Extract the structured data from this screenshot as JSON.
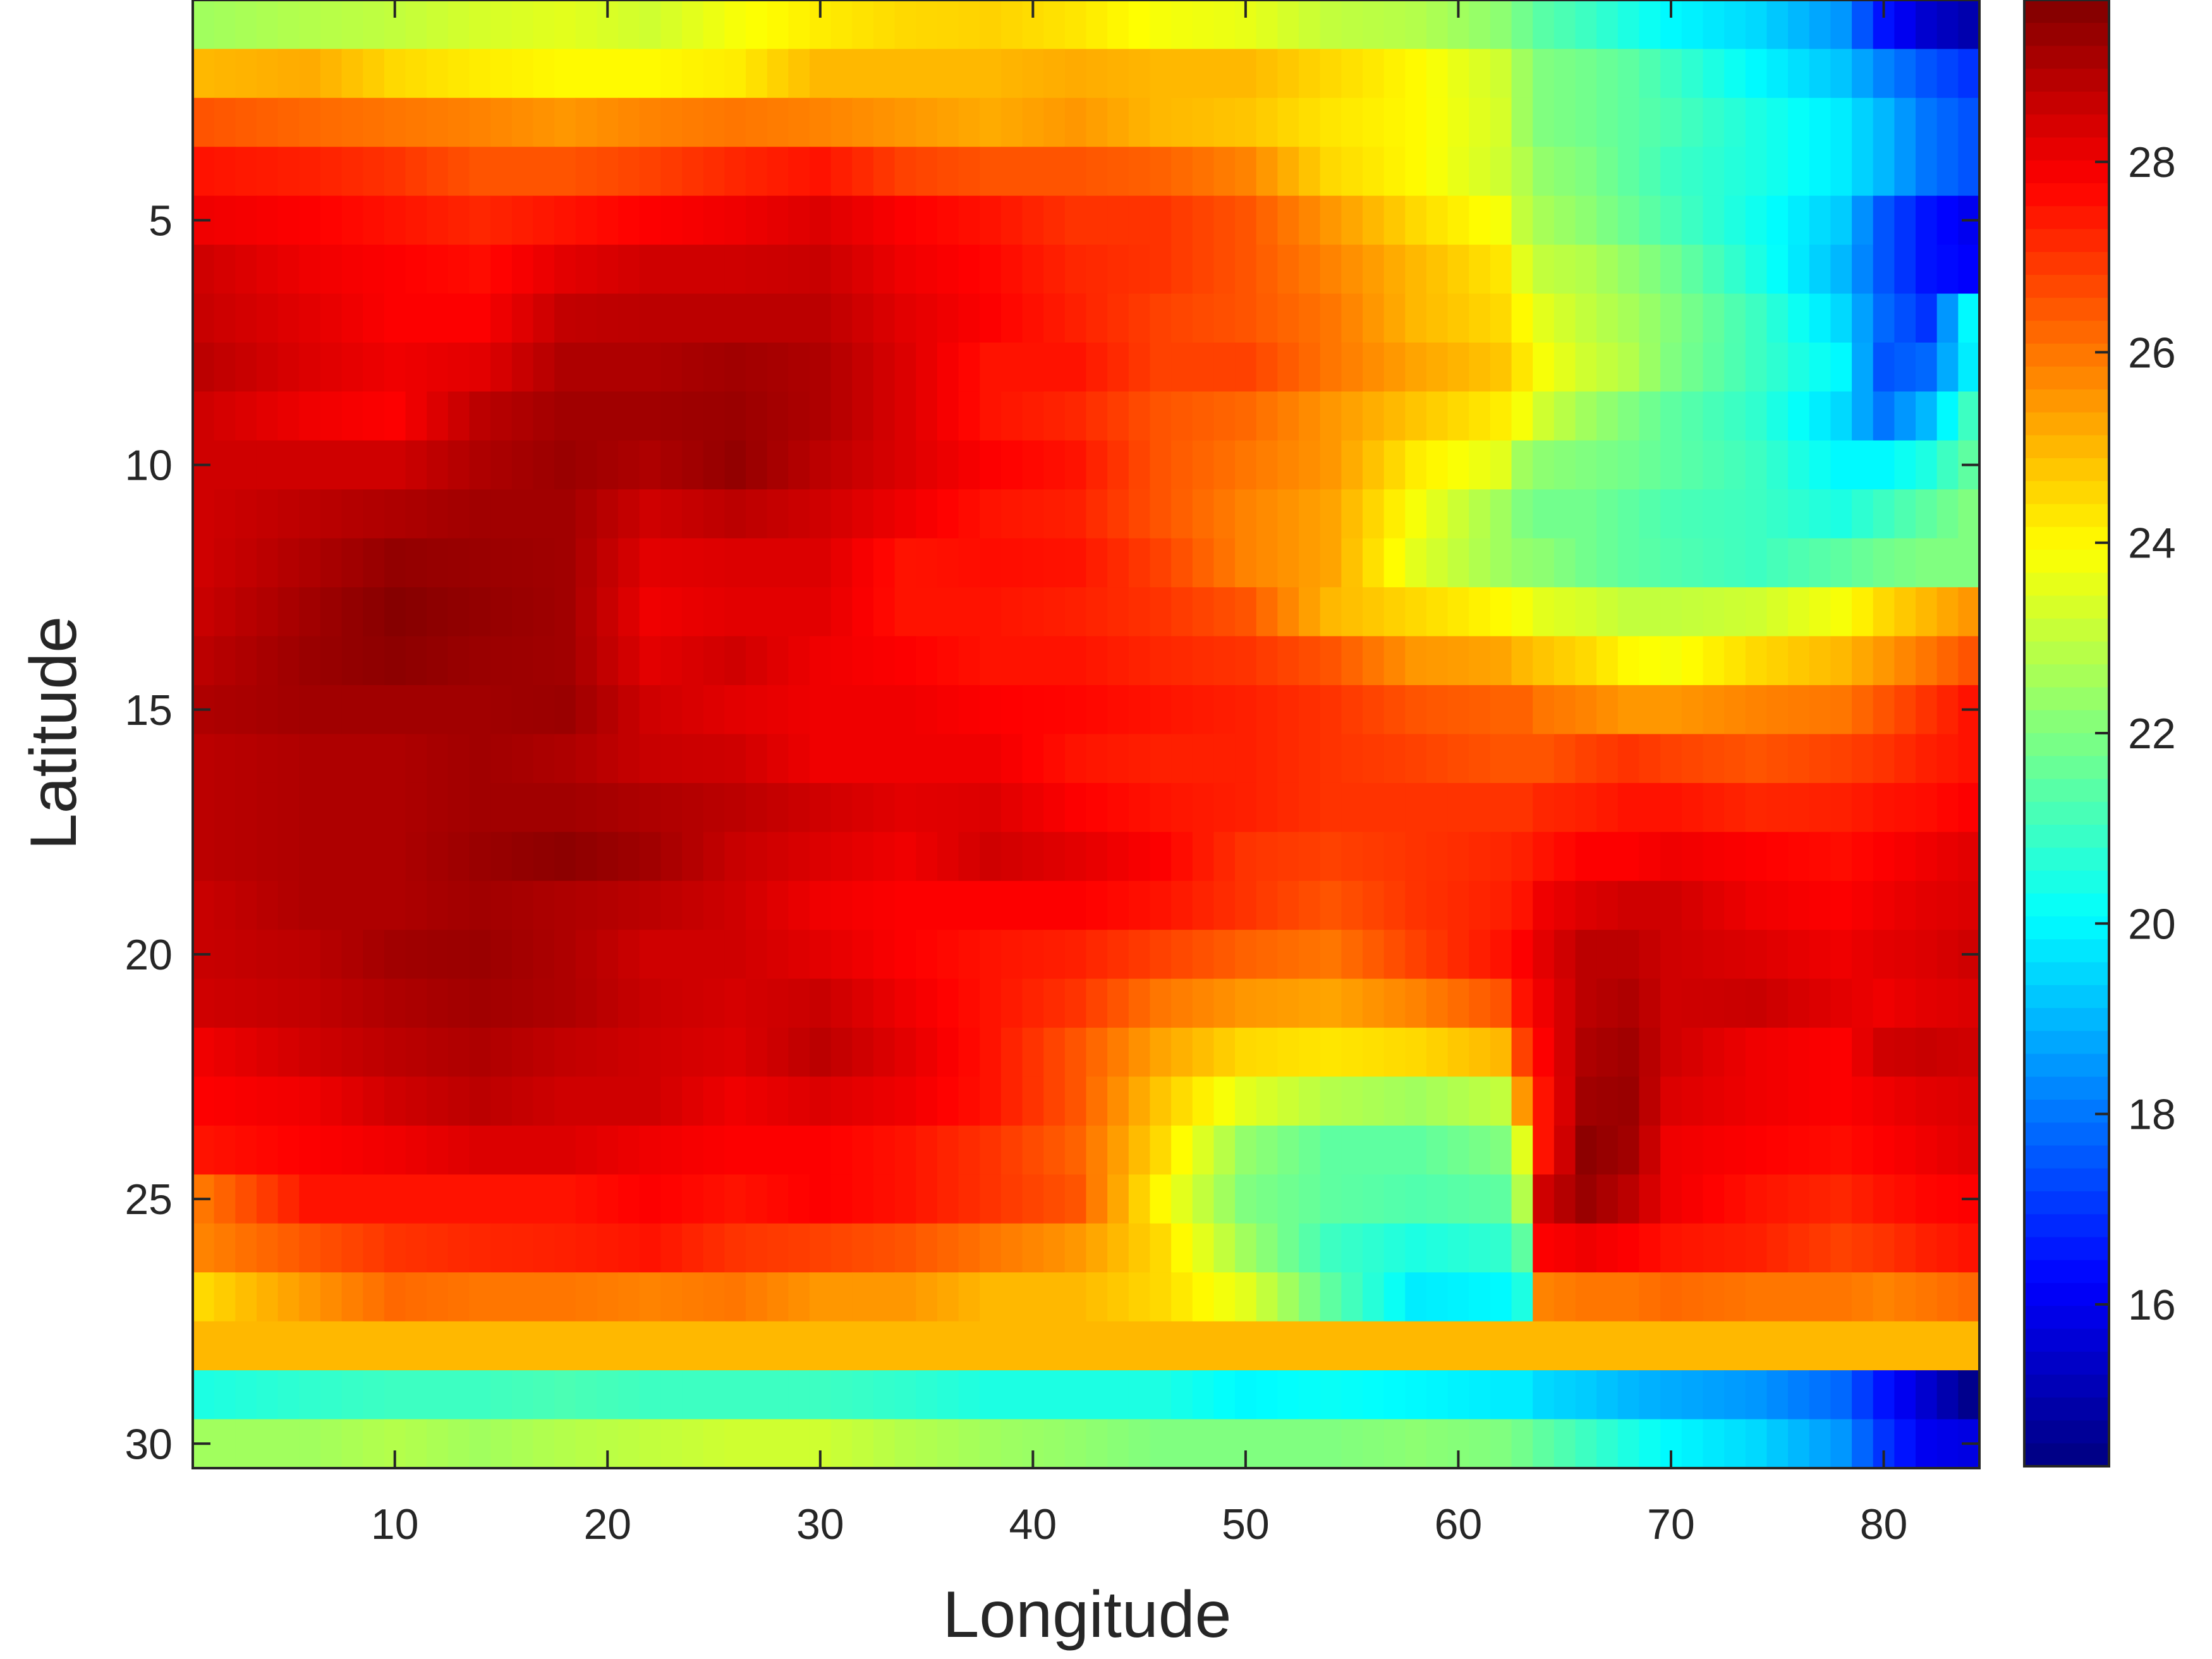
{
  "chart_data": {
    "type": "heatmap",
    "title": "",
    "xlabel": "Longitude",
    "ylabel": "Latitude",
    "colorbar_label": "",
    "colormap": "jet",
    "x_range": [
      1,
      84
    ],
    "y_range": [
      1,
      30
    ],
    "y_direction": "down",
    "x_ticks": [
      10,
      20,
      30,
      40,
      50,
      60,
      70,
      80
    ],
    "y_ticks": [
      5,
      10,
      15,
      20,
      25,
      30
    ],
    "colorbar_ticks": [
      16,
      18,
      20,
      22,
      24,
      26,
      28
    ],
    "color_range": [
      14.3,
      29.7
    ],
    "grid": false,
    "x_knots": [
      1,
      6,
      10,
      14,
      18,
      22,
      26,
      30,
      34,
      38,
      42,
      46,
      50,
      54,
      58,
      62,
      63,
      64,
      66,
      68,
      70,
      74,
      78,
      80,
      82,
      84
    ],
    "z_rows": [
      {
        "y": 1,
        "values": [
          22.5,
          22.8,
          23,
          23.3,
          23.5,
          23.2,
          23.8,
          24.2,
          24.5,
          24.6,
          24.3,
          23.8,
          23.6,
          23.0,
          22.8,
          22.2,
          21.8,
          21.4,
          21.0,
          20.5,
          20.0,
          19.5,
          18.5,
          16.5,
          15.5,
          15.0
        ]
      },
      {
        "y": 2,
        "values": [
          25.0,
          25.2,
          24.5,
          24.2,
          24.0,
          24.0,
          24.2,
          25.0,
          25.0,
          25.0,
          25.2,
          25.0,
          25.0,
          24.5,
          24.0,
          23.2,
          22.5,
          22.0,
          21.8,
          21.5,
          21.0,
          20.0,
          19.2,
          18.2,
          17.5,
          17.0
        ]
      },
      {
        "y": 3,
        "values": [
          26.5,
          26.2,
          26.0,
          25.8,
          25.5,
          25.8,
          26.0,
          25.8,
          25.5,
          25.2,
          25.5,
          25.0,
          24.8,
          24.3,
          24.0,
          23.3,
          22.5,
          22.0,
          21.8,
          21.5,
          21.2,
          20.5,
          19.8,
          19.0,
          18.0,
          17.5
        ]
      },
      {
        "y": 4,
        "values": [
          27.5,
          27.3,
          27.0,
          26.5,
          26.5,
          26.8,
          27.2,
          27.5,
          26.8,
          26.5,
          26.5,
          26.3,
          25.8,
          24.5,
          24.0,
          23.2,
          22.8,
          22.3,
          22.0,
          21.5,
          21.0,
          20.5,
          19.8,
          19.0,
          18.0,
          17.5
        ]
      },
      {
        "y": 5,
        "values": [
          28.0,
          27.8,
          27.5,
          27.2,
          27.5,
          27.8,
          28.0,
          28.3,
          27.8,
          27.5,
          27.0,
          27.0,
          26.5,
          25.5,
          24.5,
          23.8,
          23.0,
          22.6,
          22.2,
          21.7,
          21.2,
          20.3,
          19.3,
          17.5,
          16.5,
          16.0
        ]
      },
      {
        "y": 6,
        "values": [
          28.5,
          28.0,
          27.8,
          27.6,
          28.2,
          28.5,
          28.5,
          28.6,
          28.0,
          27.7,
          27.2,
          27.0,
          26.5,
          25.8,
          25.0,
          24.3,
          23.5,
          23.0,
          22.8,
          22.3,
          21.8,
          20.5,
          19.0,
          17.5,
          16.5,
          16.2
        ]
      },
      {
        "y": 7,
        "values": [
          28.6,
          28.2,
          27.8,
          27.8,
          28.7,
          28.8,
          28.8,
          28.8,
          28.2,
          27.8,
          27.3,
          26.8,
          26.5,
          26.0,
          25.0,
          24.5,
          24.0,
          23.5,
          23.0,
          22.6,
          22.1,
          21.0,
          19.5,
          17.8,
          17.0,
          20.0
        ]
      },
      {
        "y": 8,
        "values": [
          28.8,
          28.3,
          28.0,
          28.2,
          29.0,
          29.0,
          29.2,
          29.0,
          28.3,
          27.5,
          27.5,
          26.8,
          26.8,
          26.0,
          25.3,
          24.8,
          24.3,
          23.8,
          23.2,
          22.8,
          22.0,
          21.0,
          20.0,
          17.5,
          17.8,
          19.8
        ]
      },
      {
        "y": 9,
        "values": [
          28.5,
          28.0,
          27.8,
          28.8,
          29.2,
          29.2,
          29.3,
          29.0,
          28.3,
          27.5,
          27.2,
          26.5,
          26.2,
          25.5,
          24.8,
          24.2,
          23.8,
          23.2,
          22.5,
          22.0,
          21.5,
          20.8,
          19.5,
          18.0,
          19.0,
          21.0
        ]
      },
      {
        "y": 10,
        "values": [
          28.5,
          28.5,
          28.5,
          29.0,
          29.3,
          29.0,
          29.4,
          28.8,
          28.3,
          27.8,
          27.5,
          26.5,
          26.0,
          25.5,
          24.2,
          23.5,
          22.5,
          22.2,
          22.0,
          21.8,
          21.5,
          21.0,
          20.0,
          20.0,
          20.5,
          21.5
        ]
      },
      {
        "y": 11,
        "values": [
          28.5,
          28.8,
          29.0,
          29.2,
          29.2,
          28.5,
          28.8,
          28.5,
          28.0,
          27.5,
          27.3,
          26.5,
          25.8,
          25.3,
          23.8,
          22.5,
          22.0,
          21.8,
          21.8,
          21.5,
          21.2,
          21.0,
          20.5,
          21.0,
          21.5,
          22.0
        ]
      },
      {
        "y": 12,
        "values": [
          28.5,
          29.0,
          29.4,
          29.3,
          29.2,
          28.2,
          28.3,
          28.3,
          27.5,
          27.6,
          27.5,
          26.8,
          25.8,
          25.3,
          23.5,
          22.5,
          22.3,
          22.2,
          21.8,
          21.5,
          21.3,
          21.0,
          21.5,
          21.8,
          22.0,
          22.0
        ]
      },
      {
        "y": 13,
        "values": [
          28.6,
          29.2,
          29.6,
          29.4,
          29.2,
          28.0,
          28.2,
          28.2,
          27.5,
          27.5,
          27.3,
          27.0,
          26.5,
          25.0,
          24.5,
          24.0,
          23.8,
          23.5,
          23.3,
          23.0,
          23.0,
          23.2,
          23.8,
          24.5,
          25.0,
          25.5
        ]
      },
      {
        "y": 14,
        "values": [
          28.8,
          29.3,
          29.5,
          29.3,
          29.2,
          28.2,
          28.5,
          28.0,
          27.8,
          27.5,
          27.5,
          27.2,
          27.0,
          26.5,
          25.5,
          25.3,
          25.0,
          24.8,
          24.5,
          24.0,
          23.8,
          24.5,
          25.0,
          25.5,
          26.0,
          26.5
        ]
      },
      {
        "y": 15,
        "values": [
          29.0,
          29.2,
          29.2,
          29.2,
          29.3,
          28.5,
          28.2,
          28.0,
          28.0,
          27.8,
          27.7,
          27.5,
          27.3,
          27.0,
          26.5,
          26.3,
          26.3,
          26.0,
          25.8,
          25.5,
          25.5,
          25.8,
          26.0,
          26.5,
          27.0,
          27.5
        ]
      },
      {
        "y": 16,
        "values": [
          28.8,
          29.0,
          29.0,
          29.2,
          29.0,
          28.6,
          28.5,
          28.0,
          28.0,
          28.0,
          27.5,
          27.3,
          27.3,
          27.0,
          26.8,
          26.5,
          26.5,
          26.5,
          26.8,
          27.0,
          26.8,
          26.5,
          26.8,
          27.0,
          27.3,
          27.5
        ]
      },
      {
        "y": 17,
        "values": [
          28.8,
          29.0,
          29.0,
          29.2,
          29.2,
          29.0,
          28.8,
          28.5,
          28.2,
          28.3,
          27.8,
          27.5,
          27.3,
          27.0,
          27.0,
          27.0,
          27.0,
          27.2,
          27.3,
          27.5,
          27.5,
          27.2,
          27.3,
          27.5,
          27.6,
          27.8
        ]
      },
      {
        "y": 18,
        "values": [
          28.8,
          29.0,
          29.0,
          29.3,
          29.5,
          29.2,
          28.6,
          28.3,
          28.0,
          28.5,
          28.2,
          27.8,
          27.0,
          26.8,
          27.0,
          27.2,
          27.3,
          27.5,
          27.8,
          27.8,
          28.0,
          27.8,
          27.6,
          27.8,
          28.0,
          28.2
        ]
      },
      {
        "y": 19,
        "values": [
          28.6,
          29.0,
          29.0,
          29.2,
          29.0,
          28.8,
          28.5,
          28.0,
          27.8,
          27.8,
          27.8,
          27.5,
          27.0,
          26.5,
          27.0,
          27.3,
          27.5,
          28.0,
          28.3,
          28.5,
          28.5,
          28.0,
          27.8,
          28.0,
          28.2,
          28.3
        ]
      },
      {
        "y": 20,
        "values": [
          28.6,
          28.8,
          29.2,
          29.3,
          29.0,
          28.5,
          28.5,
          28.2,
          27.8,
          27.5,
          27.3,
          26.8,
          26.3,
          26.0,
          26.8,
          27.5,
          27.8,
          28.2,
          28.8,
          28.8,
          28.5,
          28.3,
          28.0,
          28.2,
          28.3,
          28.5
        ]
      },
      {
        "y": 21,
        "values": [
          28.5,
          28.7,
          29.0,
          29.2,
          29.0,
          28.6,
          28.4,
          28.6,
          28.0,
          27.5,
          27.0,
          26.0,
          25.5,
          25.3,
          25.8,
          26.5,
          27.5,
          28.0,
          28.8,
          29.0,
          28.5,
          28.6,
          28.2,
          28.0,
          28.2,
          28.3
        ]
      },
      {
        "y": 22,
        "values": [
          28.0,
          28.5,
          28.8,
          29.0,
          28.7,
          28.5,
          28.3,
          28.8,
          28.2,
          27.5,
          26.5,
          25.3,
          24.5,
          24.3,
          24.5,
          25.0,
          26.8,
          27.8,
          29.0,
          29.2,
          28.5,
          28.0,
          27.8,
          28.5,
          28.6,
          28.5
        ]
      },
      {
        "y": 23,
        "values": [
          27.8,
          28.0,
          28.5,
          28.8,
          28.5,
          28.5,
          28.0,
          28.3,
          28.0,
          27.5,
          26.5,
          24.8,
          23.5,
          22.8,
          22.5,
          23.0,
          25.5,
          27.5,
          29.2,
          29.3,
          28.3,
          28.0,
          27.8,
          28.0,
          28.2,
          28.3
        ]
      },
      {
        "y": 24,
        "values": [
          27.5,
          27.8,
          28.0,
          28.3,
          28.3,
          28.0,
          27.8,
          27.8,
          27.5,
          27.0,
          26.3,
          24.5,
          22.3,
          21.5,
          21.5,
          22.0,
          23.5,
          27.5,
          29.5,
          29.2,
          28.0,
          27.8,
          27.6,
          27.8,
          28.0,
          28.2
        ]
      },
      {
        "y": 25,
        "values": [
          26.0,
          27.5,
          27.5,
          27.5,
          27.5,
          27.8,
          27.5,
          27.8,
          27.5,
          27.0,
          26.5,
          24.0,
          22.0,
          21.5,
          21.3,
          21.5,
          22.8,
          28.5,
          29.3,
          28.8,
          28.0,
          27.5,
          27.2,
          27.5,
          27.7,
          27.8
        ]
      },
      {
        "y": 26,
        "values": [
          25.8,
          26.5,
          27.0,
          27.2,
          27.3,
          27.5,
          27.0,
          26.8,
          26.5,
          26.0,
          25.5,
          24.5,
          22.5,
          21.0,
          20.5,
          20.8,
          21.5,
          27.8,
          28.0,
          27.8,
          27.5,
          27.3,
          26.8,
          27.0,
          27.3,
          27.5
        ]
      },
      {
        "y": 27,
        "values": [
          24.5,
          25.5,
          26.2,
          26.0,
          26.0,
          25.8,
          26.0,
          25.5,
          25.5,
          25.0,
          25.0,
          24.5,
          23.5,
          21.5,
          19.8,
          20.0,
          20.5,
          25.8,
          26.0,
          26.0,
          26.2,
          26.0,
          26.0,
          25.8,
          26.0,
          26.2
        ]
      },
      {
        "y": 28,
        "values": [
          25.0,
          25.0,
          25.0,
          25.0,
          25.0,
          25.0,
          25.0,
          25.0,
          25.0,
          25.0,
          25.0,
          25.0,
          25.0,
          25.0,
          25.0,
          25.0,
          25.0,
          25.0,
          25.0,
          25.0,
          25.0,
          25.0,
          25.0,
          25.0,
          25.0,
          25.0
        ]
      },
      {
        "y": 29,
        "values": [
          20.5,
          20.8,
          21.0,
          21.0,
          21.2,
          21.0,
          21.0,
          21.0,
          20.8,
          20.5,
          20.5,
          20.5,
          20.0,
          20.2,
          20.0,
          19.8,
          19.8,
          19.5,
          19.3,
          19.0,
          18.8,
          18.5,
          17.8,
          16.5,
          15.5,
          14.5
        ]
      },
      {
        "y": 30,
        "values": [
          22.5,
          22.5,
          22.8,
          22.5,
          22.8,
          23.0,
          23.2,
          23.2,
          22.8,
          22.5,
          22.3,
          22.0,
          22.0,
          22.0,
          22.2,
          22.0,
          21.8,
          21.5,
          21.0,
          20.5,
          20.0,
          19.5,
          18.5,
          17.0,
          16.0,
          15.8
        ]
      }
    ]
  }
}
